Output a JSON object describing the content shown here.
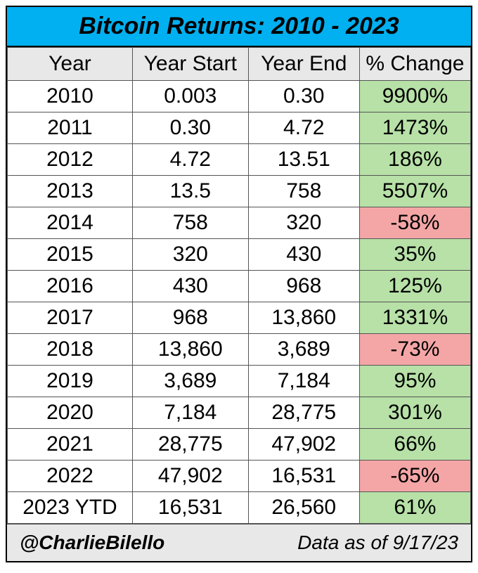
{
  "title": "Bitcoin Returns: 2010 - 2023",
  "colors": {
    "title_bg": "#00b0f0",
    "header_bg": "#e8e8e8",
    "positive_bg": "#b7e1a7",
    "negative_bg": "#f4a6a6",
    "footer_bg": "#e8e8e8"
  },
  "columns": [
    "Year",
    "Year Start",
    "Year End",
    "% Change"
  ],
  "rows": [
    {
      "year": "2010",
      "start": "0.003",
      "end": "0.30",
      "pct": "9900%",
      "dir": "pos"
    },
    {
      "year": "2011",
      "start": "0.30",
      "end": "4.72",
      "pct": "1473%",
      "dir": "pos"
    },
    {
      "year": "2012",
      "start": "4.72",
      "end": "13.51",
      "pct": "186%",
      "dir": "pos"
    },
    {
      "year": "2013",
      "start": "13.5",
      "end": "758",
      "pct": "5507%",
      "dir": "pos"
    },
    {
      "year": "2014",
      "start": "758",
      "end": "320",
      "pct": "-58%",
      "dir": "neg"
    },
    {
      "year": "2015",
      "start": "320",
      "end": "430",
      "pct": "35%",
      "dir": "pos"
    },
    {
      "year": "2016",
      "start": "430",
      "end": "968",
      "pct": "125%",
      "dir": "pos"
    },
    {
      "year": "2017",
      "start": "968",
      "end": "13,860",
      "pct": "1331%",
      "dir": "pos"
    },
    {
      "year": "2018",
      "start": "13,860",
      "end": "3,689",
      "pct": "-73%",
      "dir": "neg"
    },
    {
      "year": "2019",
      "start": "3,689",
      "end": "7,184",
      "pct": "95%",
      "dir": "pos"
    },
    {
      "year": "2020",
      "start": "7,184",
      "end": "28,775",
      "pct": "301%",
      "dir": "pos"
    },
    {
      "year": "2021",
      "start": "28,775",
      "end": "47,902",
      "pct": "66%",
      "dir": "pos"
    },
    {
      "year": "2022",
      "start": "47,902",
      "end": "16,531",
      "pct": "-65%",
      "dir": "neg"
    },
    {
      "year": "2023 YTD",
      "start": "16,531",
      "end": "26,560",
      "pct": "61%",
      "dir": "pos"
    }
  ],
  "footer": {
    "handle": "@CharlieBilello",
    "date_text": "Data as of 9/17/23"
  }
}
